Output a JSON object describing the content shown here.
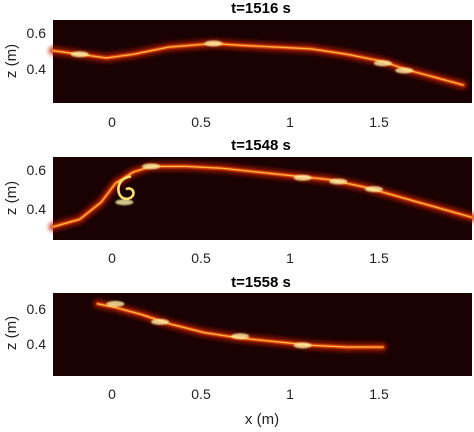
{
  "chart_data": [
    {
      "type": "heatmap",
      "title": "t=1516 s",
      "xlabel": "",
      "ylabel": "z (m)",
      "xlim": [
        -0.35,
        2.0
      ],
      "ylim": [
        0.2,
        0.66
      ],
      "xticks": [
        0,
        0.5,
        1,
        1.5
      ],
      "xtick_labels": [
        "0",
        "0.5",
        "1",
        "1.5"
      ],
      "yticks": [
        0.4,
        0.6
      ],
      "ytick_labels": [
        "0.4",
        "0.6"
      ],
      "colormap": "hot",
      "interface": [
        [
          -0.35,
          0.49
        ],
        [
          -0.2,
          0.47
        ],
        [
          -0.05,
          0.45
        ],
        [
          0.1,
          0.47
        ],
        [
          0.3,
          0.51
        ],
        [
          0.55,
          0.53
        ],
        [
          0.7,
          0.52
        ],
        [
          0.9,
          0.51
        ],
        [
          1.1,
          0.5
        ],
        [
          1.3,
          0.47
        ],
        [
          1.5,
          0.43
        ],
        [
          1.65,
          0.38
        ],
        [
          1.8,
          0.34
        ],
        [
          1.95,
          0.3
        ]
      ],
      "bright_spots": [
        [
          1.5,
          0.42
        ],
        [
          1.62,
          0.38
        ],
        [
          0.55,
          0.53
        ],
        [
          -0.2,
          0.47
        ]
      ]
    },
    {
      "type": "heatmap",
      "title": "t=1548 s",
      "xlabel": "",
      "ylabel": "z (m)",
      "xlim": [
        -0.35,
        2.0
      ],
      "ylim": [
        0.22,
        0.66
      ],
      "xticks": [
        0,
        0.5,
        1,
        1.5
      ],
      "xtick_labels": [
        "0",
        "0.5",
        "1",
        "1.5"
      ],
      "yticks": [
        0.4,
        0.6
      ],
      "ytick_labels": [
        "0.4",
        "0.6"
      ],
      "colormap": "hot",
      "interface": [
        [
          -0.35,
          0.29
        ],
        [
          -0.2,
          0.33
        ],
        [
          -0.08,
          0.42
        ],
        [
          0.0,
          0.52
        ],
        [
          0.1,
          0.58
        ],
        [
          0.2,
          0.61
        ],
        [
          0.4,
          0.61
        ],
        [
          0.6,
          0.6
        ],
        [
          0.8,
          0.58
        ],
        [
          1.0,
          0.56
        ],
        [
          1.2,
          0.54
        ],
        [
          1.4,
          0.5
        ],
        [
          1.55,
          0.46
        ],
        [
          1.7,
          0.42
        ],
        [
          1.85,
          0.38
        ],
        [
          2.0,
          0.34
        ]
      ],
      "billow": {
        "x": 0.07,
        "z": 0.46
      },
      "bright_spots": [
        [
          0.05,
          0.42
        ],
        [
          0.2,
          0.61
        ],
        [
          1.05,
          0.55
        ],
        [
          1.25,
          0.53
        ],
        [
          1.45,
          0.49
        ]
      ]
    },
    {
      "type": "heatmap",
      "title": "t=1558 s",
      "xlabel": "x (m)",
      "ylabel": "z (m)",
      "xlim": [
        -0.35,
        2.0
      ],
      "ylim": [
        0.2,
        0.66
      ],
      "xticks": [
        0,
        0.5,
        1,
        1.5
      ],
      "xtick_labels": [
        "0",
        "0.5",
        "1",
        "1.5"
      ],
      "yticks": [
        0.4,
        0.6
      ],
      "ytick_labels": [
        "0.4",
        "0.6"
      ],
      "colormap": "hot",
      "interface": [
        [
          -0.1,
          0.6
        ],
        [
          0.0,
          0.58
        ],
        [
          0.15,
          0.54
        ],
        [
          0.3,
          0.49
        ],
        [
          0.5,
          0.44
        ],
        [
          0.7,
          0.41
        ],
        [
          0.9,
          0.39
        ],
        [
          1.1,
          0.37
        ],
        [
          1.3,
          0.36
        ],
        [
          1.5,
          0.36
        ]
      ],
      "bright_spots": [
        [
          0.0,
          0.6
        ],
        [
          0.25,
          0.5
        ],
        [
          0.7,
          0.42
        ],
        [
          1.05,
          0.37
        ]
      ]
    }
  ]
}
